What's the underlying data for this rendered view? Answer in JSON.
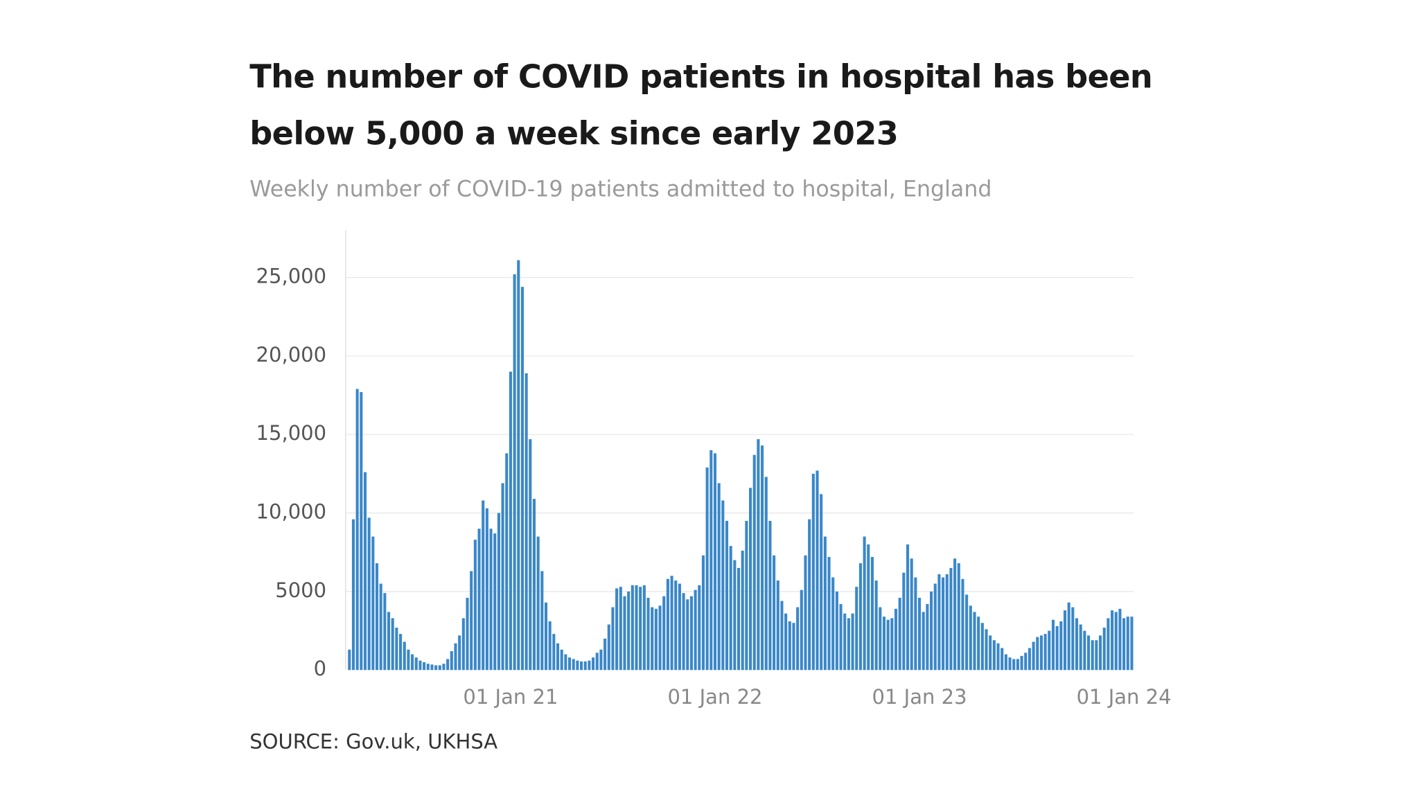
{
  "chart_data": {
    "type": "bar",
    "title": "The number of COVID patients in hospital has been below 5,000 a week since early 2023",
    "subtitle": "Weekly number of COVID-19 patients admitted to hospital, England",
    "source": "SOURCE: Gov.uk, UKHSA",
    "color": "#3a87c8",
    "grid": true,
    "ylim": [
      0,
      28000
    ],
    "yticks": [
      0,
      5000,
      {
        "value": 10000,
        "label": "10,000"
      },
      {
        "value": 15000,
        "label": "15,000"
      },
      {
        "value": 20000,
        "label": "20,000"
      },
      {
        "value": 25000,
        "label": "25,000"
      }
    ],
    "categories": [
      null,
      null,
      null,
      null,
      null,
      null,
      null,
      null,
      null,
      null,
      null,
      null,
      null,
      null,
      null,
      null,
      null,
      null,
      null,
      null,
      null,
      null,
      null,
      null,
      null,
      null,
      null,
      null,
      null,
      null,
      null,
      null,
      null,
      null,
      null,
      null,
      null,
      null,
      null,
      null,
      null,
      "01 Jan 21",
      null,
      null,
      null,
      null,
      null,
      null,
      null,
      null,
      null,
      null,
      null,
      null,
      null,
      null,
      null,
      null,
      null,
      null,
      null,
      null,
      null,
      null,
      null,
      null,
      null,
      null,
      null,
      null,
      null,
      null,
      null,
      null,
      null,
      null,
      null,
      null,
      null,
      null,
      null,
      null,
      null,
      null,
      null,
      null,
      null,
      null,
      null,
      null,
      null,
      null,
      null,
      "01 Jan 22",
      null,
      null,
      null,
      null,
      null,
      null,
      null,
      null,
      null,
      null,
      null,
      null,
      null,
      null,
      null,
      null,
      null,
      null,
      null,
      null,
      null,
      null,
      null,
      null,
      null,
      null,
      null,
      null,
      null,
      null,
      null,
      null,
      null,
      null,
      null,
      null,
      null,
      null,
      null,
      null,
      null,
      null,
      null,
      null,
      null,
      null,
      null,
      null,
      null,
      null,
      null,
      "01 Jan 23",
      null,
      null,
      null,
      null,
      null,
      null,
      null,
      null,
      null,
      null,
      null,
      null,
      null,
      null,
      null,
      null,
      null,
      null,
      null,
      null,
      null,
      null,
      null,
      null,
      null,
      null,
      null,
      null,
      null,
      null,
      null,
      null,
      null,
      null,
      null,
      null,
      null,
      null,
      null,
      null,
      null,
      null,
      null,
      null,
      null,
      null,
      null,
      null,
      null,
      null,
      null,
      "01 Jan 24",
      null,
      null
    ],
    "values": [
      1300,
      9600,
      17900,
      17700,
      12600,
      9700,
      8500,
      6800,
      5500,
      4900,
      3700,
      3300,
      2700,
      2300,
      1800,
      1300,
      1000,
      800,
      600,
      500,
      400,
      350,
      300,
      300,
      400,
      700,
      1200,
      1700,
      2200,
      3300,
      4600,
      6300,
      8300,
      9000,
      10800,
      10300,
      9000,
      8700,
      10000,
      11900,
      13800,
      19000,
      25200,
      26100,
      24400,
      18900,
      14700,
      10900,
      8500,
      6300,
      4300,
      3100,
      2300,
      1700,
      1300,
      1000,
      800,
      700,
      600,
      550,
      550,
      600,
      800,
      1100,
      1300,
      2000,
      2900,
      4000,
      5200,
      5300,
      4700,
      5000,
      5400,
      5400,
      5300,
      5400,
      4600,
      4000,
      3900,
      4100,
      4700,
      5800,
      6000,
      5700,
      5500,
      4900,
      4500,
      4700,
      5100,
      5400,
      7300,
      12900,
      14000,
      13800,
      11900,
      10800,
      9500,
      7900,
      7000,
      6500,
      7600,
      9500,
      11600,
      13700,
      14700,
      14300,
      12300,
      9500,
      7300,
      5700,
      4400,
      3600,
      3100,
      3000,
      4000,
      5100,
      7300,
      9600,
      12500,
      12700,
      11200,
      8500,
      7200,
      5900,
      5000,
      4200,
      3600,
      3300,
      3600,
      5300,
      6800,
      8500,
      8000,
      7200,
      5700,
      4000,
      3400,
      3200,
      3300,
      3900,
      4600,
      6200,
      8000,
      7100,
      5900,
      4600,
      3700,
      4200,
      5000,
      5500,
      6100,
      5900,
      6100,
      6500,
      7100,
      6800,
      5800,
      4800,
      4100,
      3700,
      3400,
      3000,
      2600,
      2200,
      1900,
      1700,
      1400,
      1000,
      800,
      700,
      700,
      900,
      1100,
      1400,
      1800,
      2100,
      2200,
      2300,
      2500,
      3200,
      2800,
      3100,
      3800,
      4300,
      4000,
      3300,
      2900,
      2500,
      2200,
      1900,
      1900,
      2200,
      2700,
      3300,
      3800,
      3700,
      3900,
      3300,
      3400,
      3400
    ]
  }
}
